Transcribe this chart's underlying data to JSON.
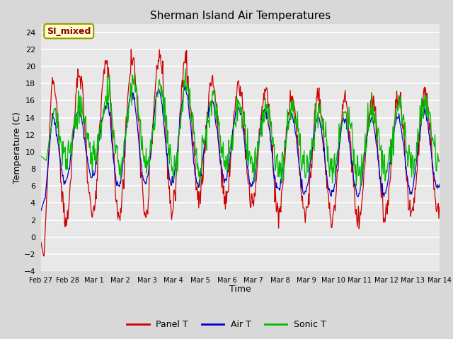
{
  "title": "Sherman Island Air Temperatures",
  "xlabel": "Time",
  "ylabel": "Temperature (C)",
  "ylim": [
    -4,
    25
  ],
  "yticks": [
    -4,
    -2,
    0,
    2,
    4,
    6,
    8,
    10,
    12,
    14,
    16,
    18,
    20,
    22,
    24
  ],
  "xtick_labels": [
    "Feb 27",
    "Feb 28",
    "Mar 1",
    "Mar 2",
    "Mar 3",
    "Mar 4",
    "Mar 5",
    "Mar 6",
    "Mar 7",
    "Mar 8",
    "Mar 9",
    "Mar 10",
    "Mar 11",
    "Mar 12",
    "Mar 13",
    "Mar 14"
  ],
  "panel_t_color": "#cc0000",
  "air_t_color": "#0000cc",
  "sonic_t_color": "#00bb00",
  "fig_bg_color": "#d8d8d8",
  "plot_bg_color": "#e8e8e8",
  "grid_color": "#ffffff",
  "annotation_text": "SI_mixed",
  "annotation_text_color": "#8b0000",
  "annotation_bg_color": "#ffffcc",
  "annotation_edge_color": "#999900",
  "legend_entries": [
    "Panel T",
    "Air T",
    "Sonic T"
  ],
  "n_days": 15,
  "pts_per_day": 48
}
